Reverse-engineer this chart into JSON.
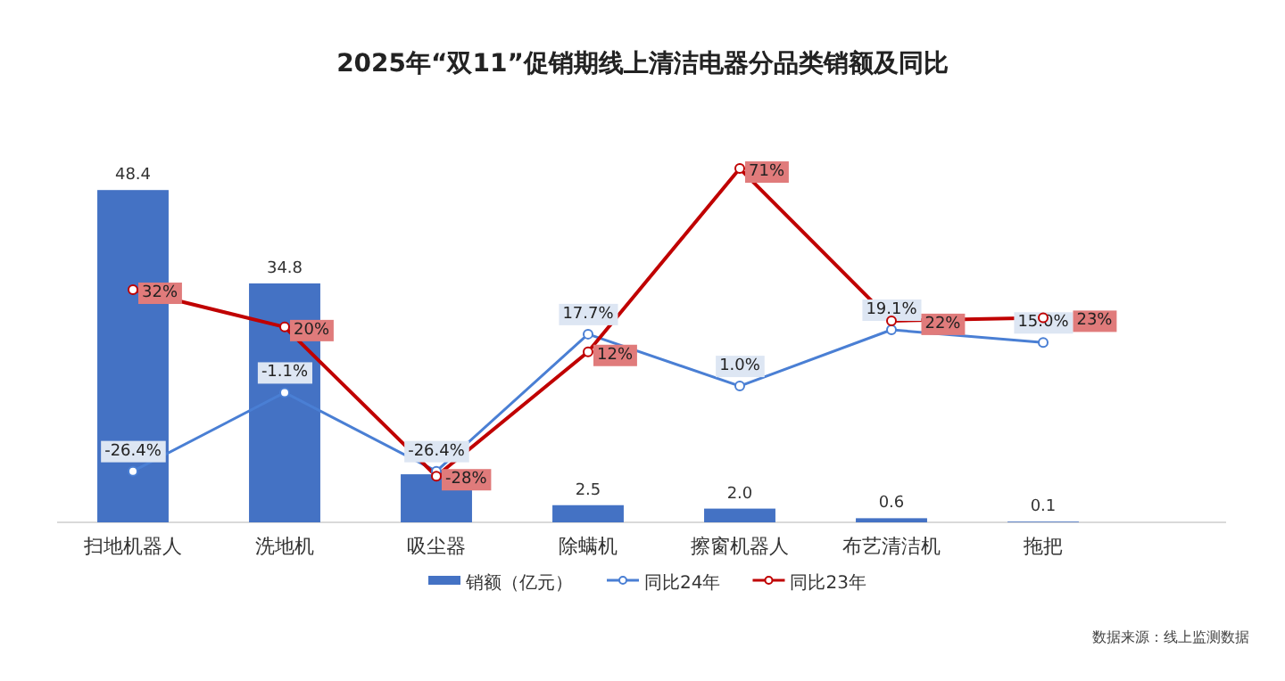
{
  "chart_data": {
    "type": "bar",
    "title": "2025年“双11”促销期线上清洁电器分品类销额及同比",
    "categories": [
      "扫地机器人",
      "洗地机",
      "吸尘器",
      "除螨机",
      "擦窗机器人",
      "布艺清洁机",
      "拖把"
    ],
    "tick_labels": "x",
    "legend": "bottom",
    "series": [
      {
        "name": "销额（亿元）",
        "color": "#4472c4",
        "values": [
          48.4,
          34.8,
          7.0,
          2.5,
          2.0,
          0.6,
          0.1
        ],
        "value_labels": [
          "48.4",
          "34.8",
          null,
          "2.5",
          "2.0",
          "0.6",
          "0.1"
        ]
      },
      {
        "name": "同比24年",
        "type": "line",
        "axis": "y2",
        "marker": "circle",
        "color": "#4a7fd4",
        "values": [
          -26.4,
          -1.1,
          -26.4,
          17.7,
          1.0,
          19.1,
          15.0
        ],
        "value_labels": [
          "-26.4%",
          "-1.1%",
          "-26.4%",
          "17.7%",
          "1.0%",
          "19.1%",
          "15.0%"
        ]
      },
      {
        "name": "同比23年",
        "type": "line",
        "axis": "y2",
        "marker": "circle",
        "color": "#c00000",
        "values": [
          32,
          20,
          -28,
          12,
          71,
          22,
          23
        ],
        "value_labels": [
          "32%",
          "20%",
          "-28%",
          "12%",
          "71%",
          "22%",
          "23%"
        ]
      }
    ],
    "annotations": [
      "数据来源：线上监测数据"
    ]
  }
}
